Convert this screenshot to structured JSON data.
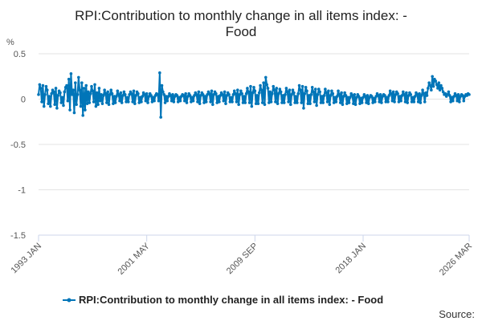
{
  "chart_data": {
    "type": "line",
    "title_line1": "RPI:Contribution to monthly change in all items index: -",
    "title_line2": "Food",
    "ylabel": "%",
    "ylim": [
      -1.5,
      0.5
    ],
    "yticks": [
      0.5,
      0,
      -0.5,
      -1,
      -1.5
    ],
    "ytick_labels": [
      "0.5",
      "0",
      "-0.5",
      "-1",
      "-1.5"
    ],
    "x_start": "1993-01",
    "x_end": "2026-03",
    "xtick_labels": [
      "1993 JAN",
      "2001 MAY",
      "2009 SEP",
      "2018 JAN",
      "2026 MAR"
    ],
    "series": [
      {
        "name": "RPI:Contribution to monthly change in all items index: - Food",
        "color": "#0075b8",
        "start": "1993-01",
        "values": [
          0.05,
          0.16,
          0.12,
          -0.03,
          0.15,
          -0.08,
          0.05,
          0.14,
          0.1,
          -0.05,
          0.03,
          -0.08,
          0.06,
          0.1,
          0.08,
          -0.06,
          0.12,
          -0.1,
          0.04,
          0.09,
          0.07,
          -0.04,
          0.02,
          -0.07,
          0.08,
          0.13,
          0.15,
          -0.02,
          0.22,
          -0.12,
          0.28,
          0.05,
          0.1,
          -0.15,
          0.18,
          -0.06,
          0.05,
          0.24,
          0.1,
          -0.08,
          0.18,
          -0.18,
          0.12,
          -0.12,
          0.15,
          -0.05,
          0.08,
          -0.04,
          0.06,
          0.14,
          0.09,
          -0.03,
          0.16,
          -0.08,
          0.07,
          -0.06,
          0.12,
          -0.02,
          0.05,
          -0.05,
          0.04,
          0.1,
          0.06,
          -0.04,
          0.08,
          -0.06,
          0.05,
          0.1,
          0.06,
          -0.05,
          0.03,
          -0.04,
          0.03,
          0.09,
          0.05,
          -0.02,
          0.07,
          -0.04,
          0.04,
          0.08,
          0.05,
          -0.03,
          0.02,
          -0.03,
          0.05,
          0.08,
          0.06,
          -0.03,
          0.09,
          -0.05,
          0.04,
          0.08,
          0.06,
          -0.04,
          0.02,
          -0.03,
          0.03,
          0.07,
          0.05,
          -0.02,
          0.06,
          -0.04,
          0.03,
          0.06,
          0.04,
          -0.03,
          0.02,
          -0.02,
          0.04,
          0.06,
          0.05,
          -0.02,
          0.29,
          -0.2,
          0.15,
          0.08,
          0.05,
          -0.04,
          0.03,
          -0.02,
          0.03,
          0.06,
          0.04,
          -0.02,
          0.05,
          -0.03,
          0.03,
          0.05,
          0.04,
          -0.03,
          0.02,
          -0.02,
          0.03,
          0.05,
          0.04,
          -0.02,
          0.06,
          -0.04,
          0.03,
          0.06,
          0.04,
          -0.03,
          0.02,
          -0.02,
          0.04,
          0.07,
          0.05,
          -0.03,
          0.08,
          -0.05,
          0.04,
          0.07,
          0.05,
          -0.04,
          0.03,
          -0.03,
          0.05,
          0.08,
          0.06,
          -0.03,
          0.09,
          -0.06,
          0.05,
          0.08,
          0.06,
          -0.04,
          0.03,
          -0.03,
          0.04,
          0.07,
          0.05,
          -0.02,
          0.08,
          -0.05,
          0.04,
          0.07,
          0.05,
          -0.03,
          0.02,
          -0.03,
          0.05,
          0.09,
          0.06,
          -0.03,
          0.1,
          -0.06,
          0.05,
          0.09,
          0.06,
          -0.04,
          0.03,
          -0.04,
          0.06,
          0.12,
          0.08,
          -0.04,
          0.14,
          -0.08,
          0.07,
          0.13,
          0.09,
          -0.05,
          0.04,
          -0.05,
          0.07,
          0.15,
          0.1,
          -0.04,
          0.18,
          -0.06,
          0.24,
          0.16,
          0.12,
          -0.04,
          0.08,
          -0.03,
          0.06,
          0.14,
          0.1,
          -0.03,
          0.12,
          -0.05,
          0.06,
          0.11,
          0.08,
          -0.04,
          0.04,
          -0.04,
          0.05,
          0.12,
          0.08,
          -0.03,
          0.1,
          -0.06,
          0.05,
          0.1,
          0.07,
          -0.04,
          0.03,
          -0.04,
          0.06,
          0.15,
          0.1,
          -0.04,
          0.14,
          -0.1,
          0.06,
          0.13,
          0.09,
          -0.05,
          0.04,
          -0.05,
          0.05,
          0.13,
          0.08,
          -0.03,
          0.11,
          -0.07,
          0.05,
          0.11,
          0.08,
          -0.04,
          0.03,
          -0.04,
          0.04,
          0.11,
          0.07,
          -0.03,
          0.09,
          -0.06,
          0.04,
          0.09,
          0.06,
          -0.04,
          0.02,
          -0.03,
          0.03,
          0.09,
          0.05,
          -0.04,
          0.07,
          -0.06,
          0.03,
          0.07,
          0.04,
          -0.05,
          0.02,
          -0.04,
          0.02,
          0.06,
          0.04,
          -0.05,
          0.05,
          -0.06,
          0.02,
          0.05,
          0.03,
          -0.05,
          0.01,
          -0.04,
          0.02,
          0.05,
          0.03,
          -0.04,
          0.04,
          -0.05,
          0.02,
          0.04,
          0.03,
          -0.04,
          0.01,
          -0.03,
          0.03,
          0.06,
          0.04,
          -0.03,
          0.05,
          -0.04,
          0.03,
          0.05,
          0.04,
          -0.03,
          0.02,
          -0.03,
          0.04,
          0.09,
          0.06,
          -0.02,
          0.08,
          -0.03,
          0.05,
          0.08,
          0.06,
          -0.03,
          0.03,
          -0.02,
          0.04,
          0.08,
          0.05,
          -0.03,
          0.07,
          -0.04,
          0.04,
          0.07,
          0.05,
          -0.03,
          0.02,
          -0.03,
          0.03,
          0.07,
          0.05,
          -0.03,
          0.06,
          -0.04,
          0.04,
          0.1,
          0.06,
          -0.03,
          0.07,
          0.04,
          0.12,
          0.18,
          0.15,
          0.1,
          0.25,
          0.14,
          0.22,
          0.2,
          0.16,
          0.12,
          0.18,
          0.1,
          0.15,
          0.12,
          0.08,
          0.05,
          0.06,
          0.03,
          0.05,
          0.08,
          0.04,
          -0.03,
          0.02,
          -0.02,
          0.03,
          0.06,
          0.04,
          -0.02,
          0.05,
          -0.03,
          0.03,
          0.05,
          0.04,
          -0.02,
          0.03,
          0.05,
          0.04,
          0.06,
          0.05
        ]
      }
    ]
  },
  "legend": {
    "label": "RPI:Contribution to monthly change in all items index: - Food"
  },
  "footer": {
    "source_label": "Source:"
  }
}
